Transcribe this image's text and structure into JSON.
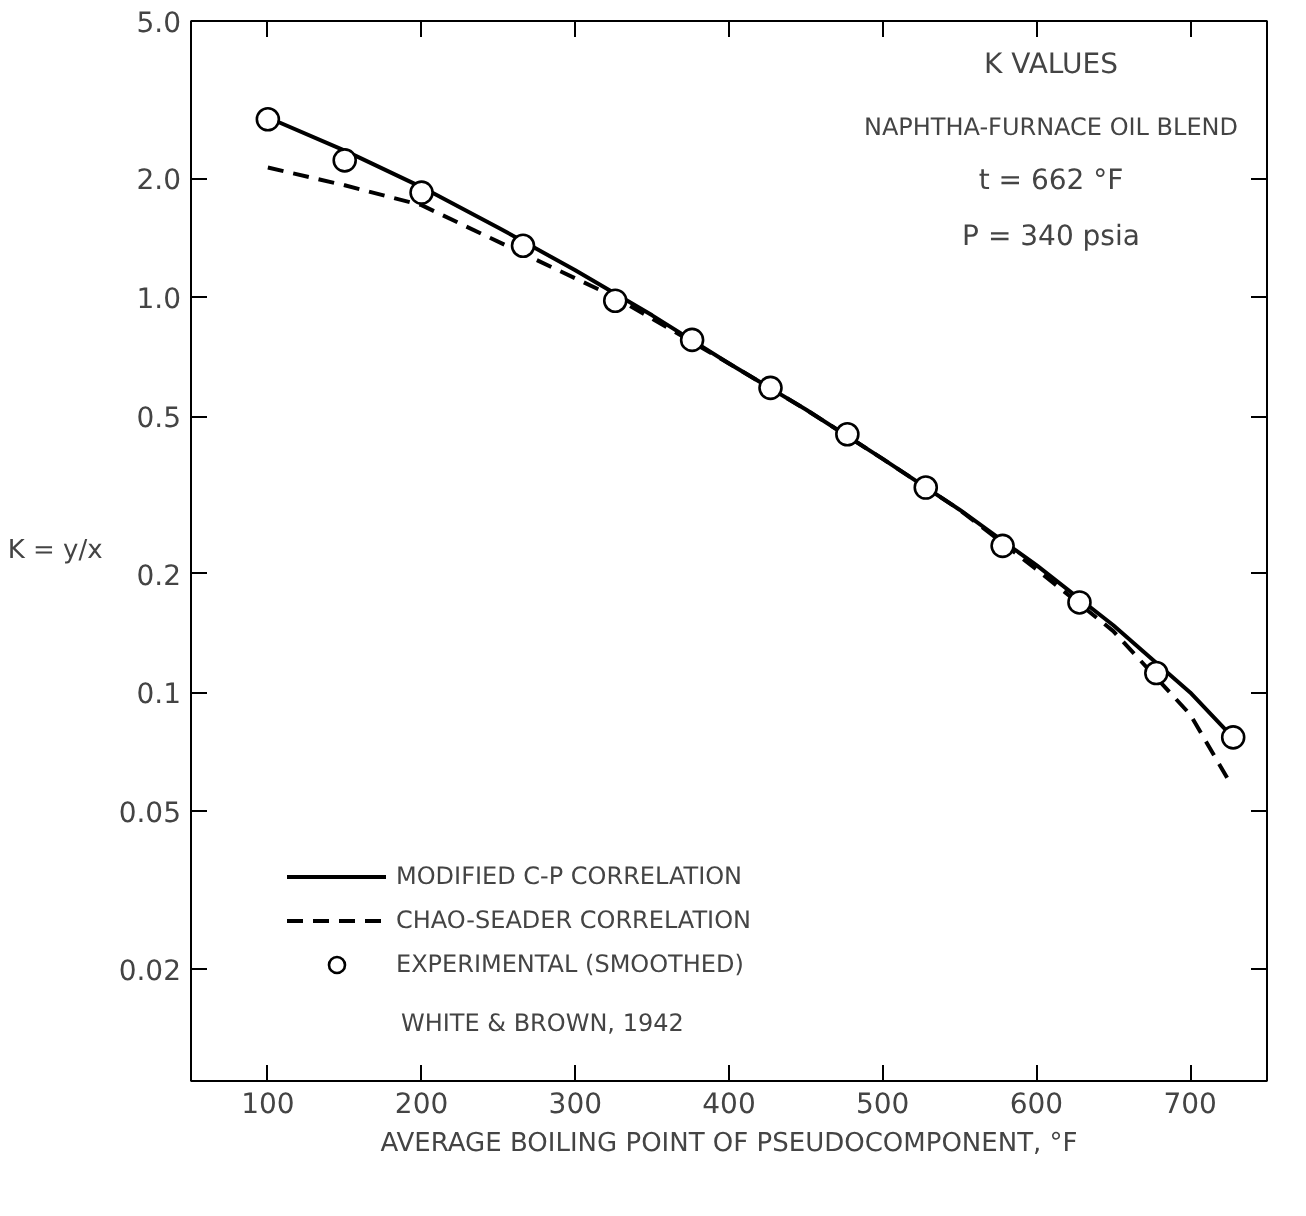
{
  "chart_data": {
    "type": "line",
    "title": "K VALUES",
    "subtitle": "NAPHTHA-FURNACE OIL BLEND",
    "xlabel": "AVERAGE BOILING POINT OF PSEUDOCOMPONENT, °F",
    "ylabel": "K = y/x",
    "annotations": [
      "t = 662 °F",
      "P = 340 psia",
      "WHITE & BROWN, 1942"
    ],
    "log": "y",
    "xlim": [
      50,
      750
    ],
    "ylim": [
      0.0104,
      5.0
    ],
    "xticks": [
      100,
      200,
      300,
      400,
      500,
      600,
      700
    ],
    "yticks": [
      0.02,
      0.05,
      0.1,
      0.2,
      0.5,
      {
        "value": 1.0,
        "label": "1.0"
      },
      {
        "value": 2.0,
        "label": "2.0"
      },
      {
        "value": 5.0,
        "label": "5.0"
      }
    ],
    "grid": false,
    "legend": "bottom left",
    "series": [
      {
        "name": "MODIFIED C-P CORRELATION",
        "line_style": "solid",
        "color": "#000000",
        "x": [
          100,
          150,
          200,
          250,
          300,
          350,
          400,
          450,
          500,
          550,
          600,
          650,
          700,
          725
        ],
        "values": [
          2.85,
          2.35,
          1.9,
          1.5,
          1.17,
          0.9,
          0.68,
          0.52,
          0.39,
          0.29,
          0.21,
          0.148,
          0.1,
          0.079
        ]
      },
      {
        "name": "CHAO-SEADER CORRELATION",
        "line_style": "dashed",
        "color": "#000000",
        "x": [
          100,
          150,
          200,
          266,
          326,
          400,
          450,
          500,
          550,
          600,
          650,
          700,
          725
        ],
        "values": [
          2.13,
          1.92,
          1.71,
          1.29,
          1.0,
          0.68,
          0.52,
          0.39,
          0.29,
          0.205,
          0.143,
          0.088,
          0.06
        ]
      },
      {
        "name": "EXPERIMENTAL (SMOOTHED)",
        "type": "scatter",
        "marker": "circle",
        "color": "#000000",
        "x": [
          100,
          150,
          200,
          266,
          326,
          376,
          427,
          477,
          528,
          578,
          628,
          678,
          728
        ],
        "values": [
          2.82,
          2.22,
          1.84,
          1.35,
          0.98,
          0.78,
          0.59,
          0.45,
          0.33,
          0.235,
          0.169,
          0.112,
          0.077
        ]
      }
    ]
  }
}
